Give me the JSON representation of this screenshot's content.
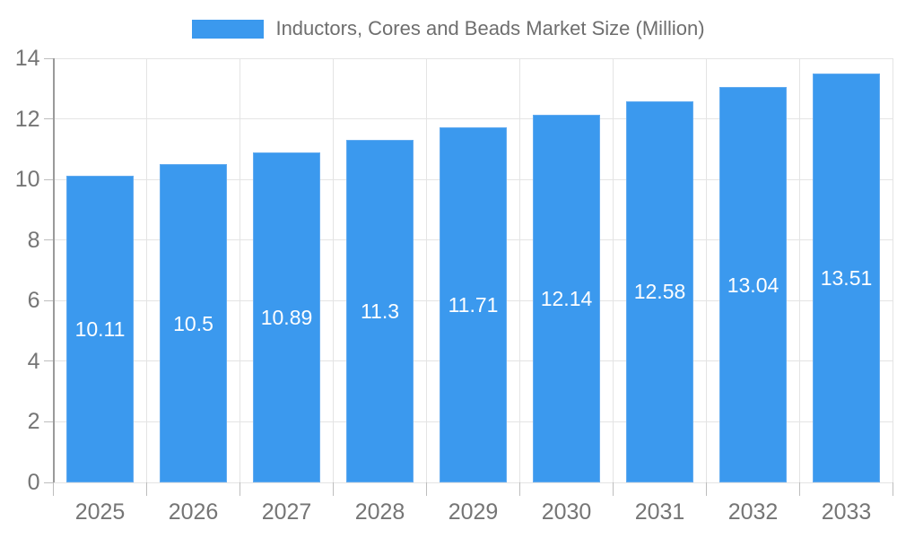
{
  "legend": {
    "label": "Inductors, Cores and Beads Market Size (Million)"
  },
  "colors": {
    "bar": "#3b99ee",
    "bar_border": "#62abf0",
    "grid": "#e4e4e4",
    "axis": "#9a9a9a",
    "tick": "#bdbdbd",
    "tick_label": "#757575",
    "value_label": "#ffffff",
    "background": "#ffffff"
  },
  "chart_data": {
    "type": "bar",
    "title": "Inductors, Cores and Beads Market Size (Million)",
    "categories": [
      "2025",
      "2026",
      "2027",
      "2028",
      "2029",
      "2030",
      "2031",
      "2032",
      "2033"
    ],
    "values": [
      10.11,
      10.5,
      10.89,
      11.3,
      11.71,
      12.14,
      12.58,
      13.04,
      13.51
    ],
    "value_labels": [
      "10.11",
      "10.5",
      "10.89",
      "11.3",
      "11.71",
      "12.14",
      "12.58",
      "13.04",
      "13.51"
    ],
    "xlabel": "",
    "ylabel": "",
    "ylim": [
      0,
      14
    ],
    "yticks": [
      0,
      2,
      4,
      6,
      8,
      10,
      12,
      14
    ],
    "grid": true,
    "legend_position": "top"
  }
}
